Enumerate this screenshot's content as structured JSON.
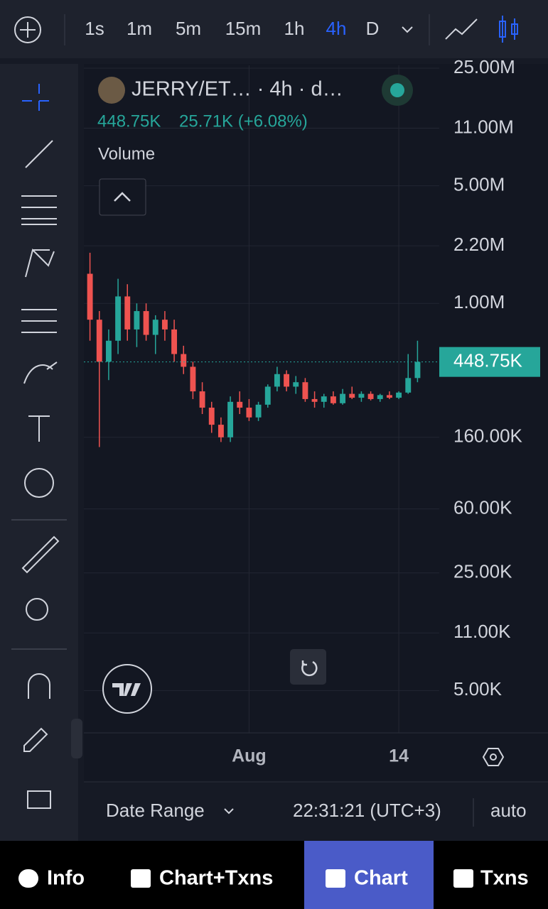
{
  "toolbar": {
    "timeframes": [
      "1s",
      "1m",
      "5m",
      "15m",
      "1h",
      "4h",
      "D"
    ],
    "active": 5
  },
  "chart_data": {
    "type": "candlestick",
    "title": "JERRY/ET… · 4h · d…",
    "last_label": "448.75K",
    "change_label": "25.71K (+6.08%)",
    "study": "Volume",
    "categories": [
      null,
      null,
      null,
      null,
      null,
      null,
      null,
      null,
      null,
      null,
      null,
      null,
      null,
      null,
      null,
      null,
      null,
      "Aug",
      null,
      null,
      null,
      null,
      null,
      null,
      null,
      null,
      null,
      null,
      null,
      null,
      null,
      null,
      null,
      "14",
      null,
      null
    ],
    "open": [
      1500000,
      800000,
      450000,
      600000,
      1100000,
      700000,
      900000,
      650000,
      800000,
      700000,
      500000,
      420000,
      300000,
      240000,
      190000,
      160000,
      260000,
      240000,
      210000,
      250000,
      320000,
      380000,
      320000,
      340000,
      270000,
      260000,
      280000,
      255000,
      290000,
      275000,
      290000,
      270000,
      285000,
      275000,
      295000,
      360000
    ],
    "high": [
      2000000,
      900000,
      700000,
      1400000,
      1300000,
      1000000,
      1000000,
      850000,
      900000,
      800000,
      560000,
      450000,
      340000,
      260000,
      210000,
      280000,
      300000,
      270000,
      260000,
      330000,
      420000,
      400000,
      370000,
      360000,
      300000,
      290000,
      300000,
      310000,
      320000,
      300000,
      300000,
      290000,
      300000,
      300000,
      500000,
      600000
    ],
    "low": [
      600000,
      140000,
      350000,
      500000,
      600000,
      550000,
      600000,
      500000,
      600000,
      450000,
      380000,
      270000,
      220000,
      170000,
      150000,
      150000,
      220000,
      200000,
      200000,
      240000,
      300000,
      300000,
      290000,
      260000,
      240000,
      240000,
      250000,
      250000,
      270000,
      260000,
      265000,
      260000,
      270000,
      270000,
      290000,
      340000
    ],
    "close": [
      800000,
      450000,
      600000,
      1100000,
      700000,
      900000,
      650000,
      800000,
      700000,
      500000,
      420000,
      300000,
      240000,
      190000,
      160000,
      260000,
      240000,
      210000,
      250000,
      320000,
      380000,
      320000,
      340000,
      270000,
      260000,
      280000,
      255000,
      290000,
      275000,
      290000,
      270000,
      285000,
      275000,
      295000,
      360000,
      448750
    ],
    "up_color": "#26a69a",
    "down_color": "#ef5350",
    "log_scale": true,
    "ylim": [
      2800,
      26000000
    ],
    "yticks": [
      {
        "value": 25000000,
        "label": "25.00M"
      },
      {
        "value": 11000000,
        "label": "11.00M"
      },
      {
        "value": 5000000,
        "label": "5.00M"
      },
      {
        "value": 2200000,
        "label": "2.20M"
      },
      {
        "value": 1000000,
        "label": "1.00M"
      },
      {
        "value": 160000,
        "label": "160.00K"
      },
      {
        "value": 60000,
        "label": "60.00K"
      },
      {
        "value": 25000,
        "label": "25.00K"
      },
      {
        "value": 11000,
        "label": "11.00K"
      },
      {
        "value": 5000,
        "label": "5.00K"
      }
    ],
    "grid": true
  },
  "footer": {
    "date_range": "Date Range",
    "time": "22:31:21 (UTC+3)",
    "scale": "auto"
  },
  "nav": {
    "tabs": [
      "Info",
      "Chart+Txns",
      "Chart",
      "Txns"
    ],
    "active": 2
  }
}
